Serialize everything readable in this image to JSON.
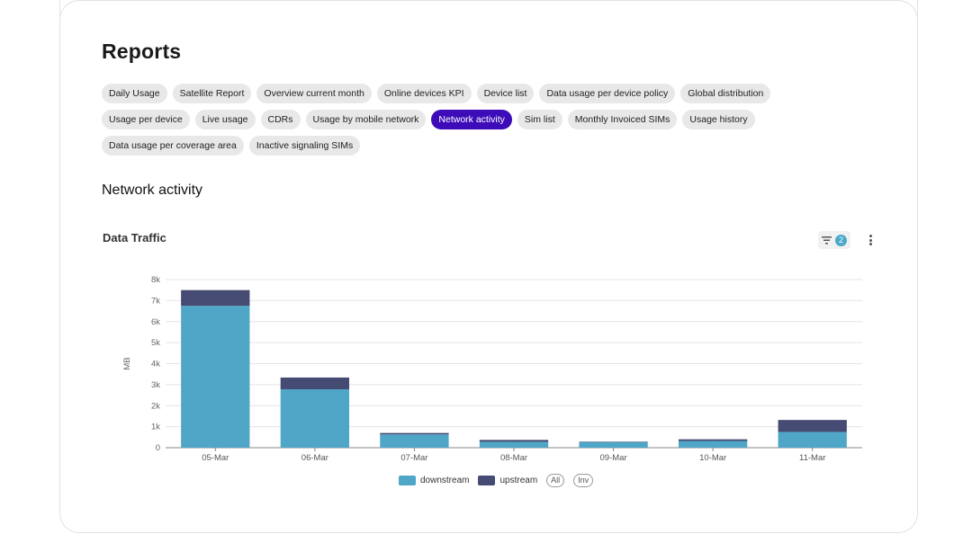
{
  "page": {
    "title": "Reports"
  },
  "report_tabs": [
    [
      "Daily Usage",
      "Satellite Report",
      "Overview current month",
      "Online devices KPI",
      "Device list",
      "Data usage per device policy",
      "Global distribution"
    ],
    [
      "Usage per device",
      "Live usage",
      "CDRs",
      "Usage by mobile network",
      "Network activity",
      "Sim list",
      "Monthly Invoiced SIMs",
      "Usage history"
    ],
    [
      "Data usage per coverage area",
      "Inactive signaling SIMs"
    ]
  ],
  "active_tab": "Network activity",
  "section": {
    "title": "Network activity"
  },
  "chart_header": {
    "title": "Data Traffic",
    "filter_count": "2"
  },
  "legend_extra": {
    "all": "All",
    "inv": "Inv"
  },
  "colors": {
    "downstream": "#4fa6c7",
    "upstream": "#454b72",
    "active_tab": "#3d0cb8",
    "badge": "#4aa8c8"
  },
  "icons": {
    "filter": "filter-icon",
    "more": "more-vertical-icon"
  },
  "chart_data": {
    "type": "bar",
    "stacked": true,
    "title": "Data Traffic",
    "xlabel": "",
    "ylabel": "MB",
    "categories": [
      "05-Mar",
      "06-Mar",
      "07-Mar",
      "08-Mar",
      "09-Mar",
      "10-Mar",
      "11-Mar"
    ],
    "series": [
      {
        "name": "downstream",
        "values": [
          6750,
          2780,
          630,
          280,
          270,
          320,
          750
        ]
      },
      {
        "name": "upstream",
        "values": [
          750,
          560,
          70,
          90,
          20,
          80,
          570
        ]
      }
    ],
    "ylim": [
      0,
      8000
    ],
    "yticks": [
      "0",
      "1k",
      "2k",
      "3k",
      "4k",
      "5k",
      "6k",
      "7k",
      "8k"
    ],
    "grid": true,
    "legend": "bottom-center"
  }
}
